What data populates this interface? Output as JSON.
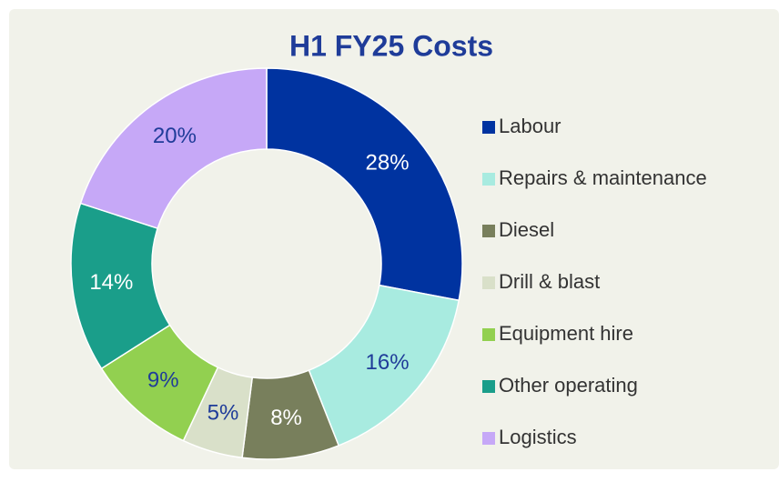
{
  "chart_data": {
    "type": "pie",
    "title": "H1 FY25 Costs",
    "donut": true,
    "legend": "right",
    "categories": [
      "Labour",
      "Repairs & maintenance",
      "Diesel",
      "Drill & blast",
      "Equipment hire",
      "Other operating",
      "Logistics"
    ],
    "values": [
      28,
      16,
      8,
      5,
      9,
      14,
      20
    ],
    "value_labels": [
      "28%",
      "16%",
      "8%",
      "5%",
      "9%",
      "14%",
      "20%"
    ],
    "colors": [
      "#0033a0",
      "#a8ebe0",
      "#787f5c",
      "#d9e0c9",
      "#92d050",
      "#1a9e8a",
      "#c6a8f7"
    ]
  }
}
